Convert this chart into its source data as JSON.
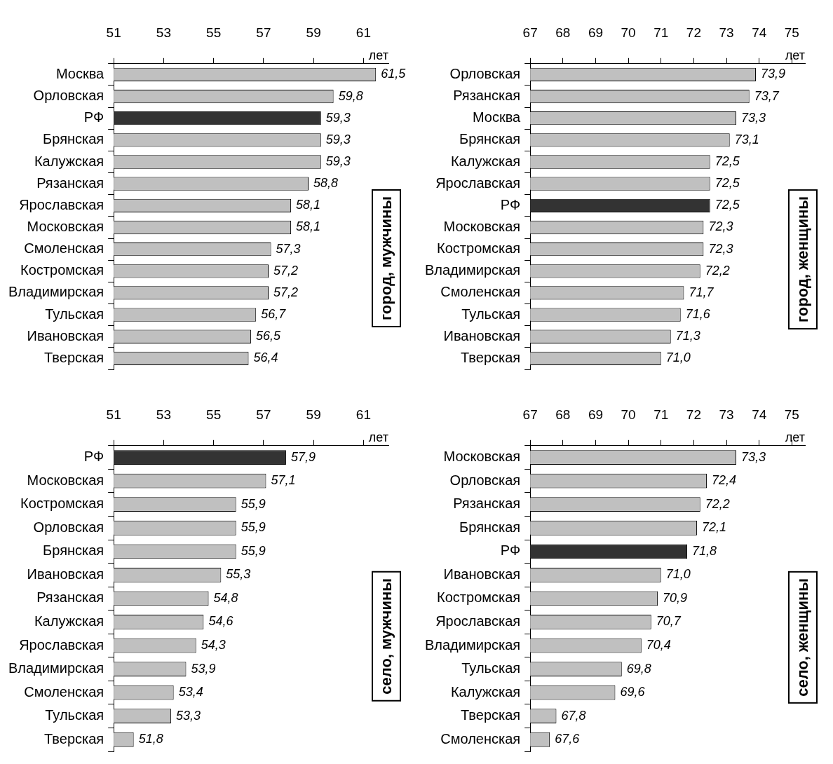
{
  "chart_data": [
    {
      "type": "bar",
      "orientation": "horizontal",
      "categories": [
        "Москва",
        "Орловская",
        "РФ",
        "Брянская",
        "Калужская",
        "Рязанская",
        "Ярославская",
        "Московская",
        "Смоленская",
        "Костромская",
        "Владимирская",
        "Тульская",
        "Ивановская",
        "Тверская"
      ],
      "values": [
        61.5,
        59.8,
        59.3,
        59.3,
        59.3,
        58.8,
        58.1,
        58.1,
        57.3,
        57.2,
        57.2,
        56.7,
        56.5,
        56.4
      ],
      "colors": [
        "#c0c0c0",
        "#c0c0c0",
        "#333333",
        "#c0c0c0",
        "#c0c0c0",
        "#c0c0c0",
        "#c0c0c0",
        "#c0c0c0",
        "#c0c0c0",
        "#c0c0c0",
        "#c0c0c0",
        "#c0c0c0",
        "#c0c0c0",
        "#c0c0c0"
      ],
      "value_labels": [
        "61,5",
        "59,8",
        "59,3",
        "59,3",
        "59,3",
        "58,8",
        "58,1",
        "58,1",
        "57,3",
        "57,2",
        "57,2",
        "56,7",
        "56,5",
        "56,4"
      ],
      "xlim": [
        51,
        62
      ],
      "xticks": [
        51,
        53,
        55,
        57,
        59,
        61
      ],
      "xlabel": "лет",
      "annotations": [
        "город, мужчины"
      ]
    },
    {
      "type": "bar",
      "orientation": "horizontal",
      "categories": [
        "Орловская",
        "Рязанская",
        "Москва",
        "Брянская",
        "Калужская",
        "Ярославская",
        "РФ",
        "Московская",
        "Костромская",
        "Владимирская",
        "Смоленская",
        "Тульская",
        "Ивановская",
        "Тверская"
      ],
      "values": [
        73.9,
        73.7,
        73.3,
        73.1,
        72.5,
        72.5,
        72.5,
        72.3,
        72.3,
        72.2,
        71.7,
        71.6,
        71.3,
        71.0
      ],
      "colors": [
        "#c0c0c0",
        "#c0c0c0",
        "#c0c0c0",
        "#c0c0c0",
        "#c0c0c0",
        "#c0c0c0",
        "#333333",
        "#c0c0c0",
        "#c0c0c0",
        "#c0c0c0",
        "#c0c0c0",
        "#c0c0c0",
        "#c0c0c0",
        "#c0c0c0"
      ],
      "value_labels": [
        "73,9",
        "73,7",
        "73,3",
        "73,1",
        "72,5",
        "72,5",
        "72,5",
        "72,3",
        "72,3",
        "72,2",
        "71,7",
        "71,6",
        "71,3",
        "71,0"
      ],
      "xlim": [
        67,
        75.4
      ],
      "xticks": [
        67,
        68,
        69,
        70,
        71,
        72,
        73,
        74,
        75
      ],
      "xlabel": "лет",
      "annotations": [
        "город, женщины"
      ]
    },
    {
      "type": "bar",
      "orientation": "horizontal",
      "categories": [
        "РФ",
        "Московская",
        "Костромская",
        "Орловская",
        "Брянская",
        "Ивановская",
        "Рязанская",
        "Калужская",
        "Ярославская",
        "Владимирская",
        "Смоленская",
        "Тульская",
        "Тверская"
      ],
      "values": [
        57.9,
        57.1,
        55.9,
        55.9,
        55.9,
        55.3,
        54.8,
        54.6,
        54.3,
        53.9,
        53.4,
        53.3,
        51.8
      ],
      "colors": [
        "#333333",
        "#c0c0c0",
        "#c0c0c0",
        "#c0c0c0",
        "#c0c0c0",
        "#c0c0c0",
        "#c0c0c0",
        "#c0c0c0",
        "#c0c0c0",
        "#c0c0c0",
        "#c0c0c0",
        "#c0c0c0",
        "#c0c0c0"
      ],
      "value_labels": [
        "57,9",
        "57,1",
        "55,9",
        "55,9",
        "55,9",
        "55,3",
        "54,8",
        "54,6",
        "54,3",
        "53,9",
        "53,4",
        "53,3",
        "51,8"
      ],
      "xlim": [
        51,
        62
      ],
      "xticks": [
        51,
        53,
        55,
        57,
        59,
        61
      ],
      "xlabel": "лет",
      "annotations": [
        "село, мужчины"
      ]
    },
    {
      "type": "bar",
      "orientation": "horizontal",
      "categories": [
        "Московская",
        "Орловская",
        "Рязанская",
        "Брянская",
        "РФ",
        "Ивановская",
        "Костромская",
        "Ярославская",
        "Владимирская",
        "Тульская",
        "Калужская",
        "Тверская",
        "Смоленская"
      ],
      "values": [
        73.3,
        72.4,
        72.2,
        72.1,
        71.8,
        71.0,
        70.9,
        70.7,
        70.4,
        69.8,
        69.6,
        67.8,
        67.6
      ],
      "colors": [
        "#c0c0c0",
        "#c0c0c0",
        "#c0c0c0",
        "#c0c0c0",
        "#333333",
        "#c0c0c0",
        "#c0c0c0",
        "#c0c0c0",
        "#c0c0c0",
        "#c0c0c0",
        "#c0c0c0",
        "#c0c0c0",
        "#c0c0c0"
      ],
      "value_labels": [
        "73,3",
        "72,4",
        "72,2",
        "72,1",
        "71,8",
        "71,0",
        "70,9",
        "70,7",
        "70,4",
        "69,8",
        "69,6",
        "67,8",
        "67,6"
      ],
      "xlim": [
        67,
        75.4
      ],
      "xticks": [
        67,
        68,
        69,
        70,
        71,
        72,
        73,
        74,
        75
      ],
      "xlabel": "лет",
      "annotations": [
        "село, женщины"
      ]
    }
  ]
}
